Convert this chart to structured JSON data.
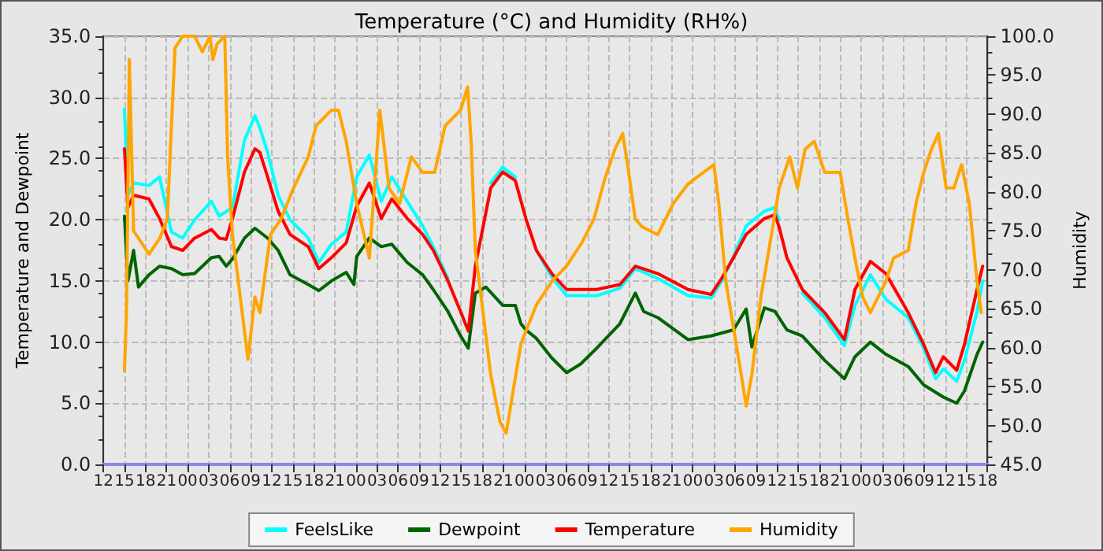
{
  "chart_data": {
    "type": "line",
    "title": "Temperature (°C) and Humidity (RH%)",
    "ylabel": "Temperature and Dewpoint",
    "y2label": "Humidity",
    "xlim": [
      12,
      138
    ],
    "xticks": [
      {
        "value": 12,
        "label": "12"
      },
      {
        "value": 15,
        "label": "15"
      },
      {
        "value": 18,
        "label": "18"
      },
      {
        "value": 21,
        "label": "21"
      },
      {
        "value": 24,
        "label": "00"
      },
      {
        "value": 27,
        "label": "03"
      },
      {
        "value": 30,
        "label": "06"
      },
      {
        "value": 33,
        "label": "09"
      },
      {
        "value": 36,
        "label": "12"
      },
      {
        "value": 39,
        "label": "15"
      },
      {
        "value": 42,
        "label": "18"
      },
      {
        "value": 45,
        "label": "21"
      },
      {
        "value": 48,
        "label": "00"
      },
      {
        "value": 51,
        "label": "03"
      },
      {
        "value": 54,
        "label": "06"
      },
      {
        "value": 57,
        "label": "09"
      },
      {
        "value": 60,
        "label": "12"
      },
      {
        "value": 63,
        "label": "15"
      },
      {
        "value": 66,
        "label": "18"
      },
      {
        "value": 69,
        "label": "21"
      },
      {
        "value": 72,
        "label": "00"
      },
      {
        "value": 75,
        "label": "03"
      },
      {
        "value": 78,
        "label": "06"
      },
      {
        "value": 81,
        "label": "09"
      },
      {
        "value": 84,
        "label": "12"
      },
      {
        "value": 87,
        "label": "15"
      },
      {
        "value": 90,
        "label": "18"
      },
      {
        "value": 93,
        "label": "21"
      },
      {
        "value": 96,
        "label": "00"
      },
      {
        "value": 99,
        "label": "03"
      },
      {
        "value": 102,
        "label": "06"
      },
      {
        "value": 105,
        "label": "09"
      },
      {
        "value": 108,
        "label": "12"
      },
      {
        "value": 111,
        "label": "15"
      },
      {
        "value": 114,
        "label": "18"
      },
      {
        "value": 117,
        "label": "21"
      },
      {
        "value": 120,
        "label": "00"
      },
      {
        "value": 123,
        "label": "03"
      },
      {
        "value": 126,
        "label": "06"
      },
      {
        "value": 129,
        "label": "09"
      },
      {
        "value": 132,
        "label": "12"
      },
      {
        "value": 135,
        "label": "15"
      },
      {
        "value": 138,
        "label": "18"
      }
    ],
    "ylim": [
      0,
      35
    ],
    "yticks": [
      {
        "value": 0,
        "label": "0.0"
      },
      {
        "value": 5,
        "label": "5.0"
      },
      {
        "value": 10,
        "label": "10.0"
      },
      {
        "value": 15,
        "label": "15.0"
      },
      {
        "value": 20,
        "label": "20.0"
      },
      {
        "value": 25,
        "label": "25.0"
      },
      {
        "value": 30,
        "label": "30.0"
      },
      {
        "value": 35,
        "label": "35.0"
      }
    ],
    "y2lim": [
      45,
      100
    ],
    "y2ticks": [
      {
        "value": 45,
        "label": "45.0"
      },
      {
        "value": 50,
        "label": "50.0"
      },
      {
        "value": 55,
        "label": "55.0"
      },
      {
        "value": 60,
        "label": "60.0"
      },
      {
        "value": 65,
        "label": "65.0"
      },
      {
        "value": 70,
        "label": "70.0"
      },
      {
        "value": 75,
        "label": "75.0"
      },
      {
        "value": 80,
        "label": "80.0"
      },
      {
        "value": 85,
        "label": "85.0"
      },
      {
        "value": 90,
        "label": "90.0"
      },
      {
        "value": 95,
        "label": "95.0"
      },
      {
        "value": 100,
        "label": "100.0"
      }
    ],
    "grid": true,
    "legend": "bottom",
    "marker": "none",
    "line_style": "solid",
    "series": [
      {
        "name": "FeelsLike",
        "color": "#00ffff",
        "x": [
          15.0,
          15.5,
          16.3,
          18.5,
          20.0,
          21.7,
          23.3,
          25.0,
          27.4,
          28.5,
          30.4,
          32.1,
          33.6,
          34.3,
          35.4,
          36.9,
          38.6,
          41.2,
          42.7,
          44.5,
          46.6,
          48.1,
          49.9,
          51.6,
          53.1,
          55.3,
          57.5,
          59.0,
          61.1,
          62.9,
          64.0,
          65.0,
          67.2,
          68.9,
          70.7,
          72.2,
          73.7,
          75.9,
          78.0,
          82.3,
          85.6,
          87.8,
          91.0,
          95.3,
          98.6,
          100.1,
          101.8,
          103.6,
          106.2,
          107.7,
          108.3,
          109.4,
          111.6,
          114.8,
          117.6,
          119.1,
          121.3,
          123.5,
          126.7,
          128.9,
          130.6,
          131.7,
          133.6,
          134.7,
          136.5,
          137.3
        ],
        "values": [
          29.0,
          22.0,
          23.0,
          22.8,
          23.5,
          19.0,
          18.5,
          20.0,
          21.5,
          20.3,
          21.0,
          26.5,
          28.5,
          27.5,
          25.5,
          22.0,
          20.0,
          18.5,
          16.5,
          18.0,
          19.0,
          23.5,
          25.3,
          21.5,
          23.5,
          21.5,
          19.5,
          17.8,
          15.2,
          null,
          null,
          null,
          23.0,
          24.3,
          23.5,
          null,
          17.5,
          15.3,
          13.8,
          13.8,
          14.4,
          16.0,
          15.2,
          13.8,
          13.6,
          15.0,
          17.0,
          19.5,
          20.7,
          21.0,
          20.0,
          null,
          14.0,
          12.0,
          9.7,
          13.0,
          15.5,
          13.5,
          12.0,
          9.5,
          7.0,
          7.8,
          6.8,
          8.5,
          12.5,
          15.0
        ]
      },
      {
        "name": "Dewpoint",
        "color": "#006400",
        "x": [
          15.0,
          15.5,
          16.3,
          17.0,
          18.5,
          20.0,
          21.7,
          23.3,
          25.0,
          27.4,
          28.5,
          29.5,
          30.4,
          32.1,
          33.6,
          35.4,
          36.9,
          38.6,
          41.2,
          42.7,
          44.5,
          46.6,
          47.7,
          48.1,
          49.9,
          51.6,
          53.1,
          55.3,
          57.5,
          59.0,
          61.1,
          62.9,
          64.0,
          65.0,
          66.5,
          68.9,
          70.7,
          71.5,
          72.2,
          73.7,
          75.9,
          78.0,
          80.0,
          82.3,
          85.6,
          87.8,
          89.0,
          91.0,
          95.3,
          98.6,
          101.8,
          103.6,
          104.4,
          106.2,
          107.7,
          109.4,
          111.6,
          114.8,
          117.6,
          119.1,
          121.3,
          123.5,
          126.7,
          128.9,
          131.7,
          133.6,
          134.7,
          136.5,
          137.3
        ],
        "values": [
          20.3,
          15.0,
          17.5,
          14.5,
          15.5,
          16.2,
          16.0,
          15.5,
          15.6,
          16.9,
          17.0,
          16.2,
          16.8,
          18.5,
          19.3,
          18.5,
          17.5,
          15.5,
          14.7,
          14.2,
          15.0,
          15.7,
          14.7,
          17.0,
          18.5,
          17.8,
          18.0,
          16.5,
          15.5,
          14.3,
          12.5,
          10.5,
          9.5,
          14.0,
          14.5,
          13.0,
          13.0,
          11.5,
          11.0,
          10.3,
          8.7,
          7.5,
          8.2,
          9.5,
          11.5,
          14.0,
          12.5,
          12.0,
          10.2,
          10.5,
          11.0,
          12.7,
          9.6,
          12.8,
          12.5,
          11.0,
          10.5,
          8.5,
          7.0,
          8.8,
          10.0,
          9.0,
          8.0,
          6.5,
          5.5,
          5.0,
          6.0,
          9.0,
          10.0
        ]
      },
      {
        "name": "Temperature",
        "color": "#ff0000",
        "x": [
          15.0,
          15.5,
          16.3,
          18.5,
          20.0,
          21.7,
          23.3,
          25.0,
          27.4,
          28.5,
          29.5,
          30.4,
          32.1,
          33.6,
          34.3,
          35.4,
          36.9,
          38.6,
          41.2,
          42.7,
          44.5,
          46.6,
          48.1,
          49.9,
          51.6,
          53.1,
          55.3,
          57.5,
          59.0,
          61.1,
          62.9,
          64.0,
          65.0,
          67.2,
          68.9,
          70.7,
          72.2,
          73.7,
          75.9,
          78.0,
          82.3,
          85.6,
          87.8,
          91.0,
          95.3,
          98.6,
          100.1,
          101.8,
          103.6,
          106.2,
          107.7,
          108.3,
          109.4,
          111.6,
          114.8,
          117.6,
          119.1,
          121.3,
          123.5,
          126.7,
          128.9,
          130.6,
          131.7,
          133.6,
          134.7,
          136.5,
          137.3
        ],
        "values": [
          25.8,
          21.0,
          22.0,
          21.7,
          20.1,
          17.8,
          17.5,
          18.5,
          19.2,
          18.5,
          18.4,
          20.1,
          23.9,
          25.8,
          25.5,
          23.5,
          20.7,
          18.8,
          17.8,
          16.0,
          16.9,
          18.1,
          21.1,
          23.0,
          20.1,
          21.7,
          20.1,
          18.8,
          17.5,
          15.0,
          12.5,
          10.9,
          16.2,
          22.6,
          23.9,
          23.2,
          20.1,
          17.5,
          15.6,
          14.3,
          14.3,
          14.7,
          16.2,
          15.6,
          14.3,
          13.9,
          15.2,
          16.9,
          18.8,
          20.1,
          20.4,
          19.4,
          16.9,
          14.3,
          12.4,
          10.2,
          14.3,
          16.6,
          15.6,
          12.4,
          9.8,
          7.5,
          8.8,
          7.7,
          9.8,
          14.3,
          16.2
        ]
      },
      {
        "name": "Humidity",
        "color": "#ffa500",
        "axis": "y2",
        "x": [
          15.0,
          15.3,
          15.7,
          16.3,
          18.5,
          20.0,
          21.1,
          22.2,
          23.3,
          25.0,
          26.1,
          27.2,
          27.6,
          28.2,
          29.3,
          29.7,
          30.4,
          31.5,
          32.6,
          33.6,
          34.3,
          35.8,
          37.3,
          39.1,
          41.2,
          42.3,
          44.5,
          45.5,
          46.6,
          48.1,
          49.9,
          51.4,
          52.7,
          54.2,
          55.9,
          57.5,
          59.2,
          60.7,
          62.9,
          63.9,
          64.4,
          65.0,
          66.1,
          67.2,
          68.5,
          69.4,
          70.4,
          71.5,
          73.7,
          75.9,
          78.0,
          80.2,
          81.9,
          83.4,
          84.9,
          86.0,
          86.7,
          87.8,
          88.8,
          91.0,
          93.2,
          95.3,
          97.5,
          99.0,
          99.7,
          100.7,
          102.9,
          103.6,
          104.4,
          105.7,
          107.2,
          108.3,
          109.8,
          110.9,
          112.0,
          113.3,
          114.8,
          117.0,
          118.1,
          119.1,
          120.2,
          121.3,
          123.5,
          124.6,
          126.7,
          127.8,
          128.9,
          130.0,
          131.0,
          132.1,
          133.2,
          134.3,
          135.4,
          136.5,
          137.1
        ],
        "values": [
          57,
          65,
          97,
          75,
          72,
          74,
          76.5,
          98.5,
          100,
          100,
          98,
          100,
          97,
          99,
          100,
          84.5,
          74.5,
          66.5,
          58.5,
          66.5,
          64.5,
          74.5,
          76.5,
          80.5,
          84.5,
          88.5,
          90.5,
          90.5,
          86.5,
          78.5,
          71.5,
          90.5,
          80.5,
          78.5,
          84.5,
          82.5,
          82.5,
          88.5,
          90.5,
          93.5,
          86.5,
          72.5,
          64.5,
          56.5,
          50.5,
          49,
          54.5,
          60.5,
          65.5,
          68.5,
          70.5,
          73.5,
          76.5,
          81.5,
          85.5,
          87.5,
          83.5,
          76.5,
          75.5,
          74.5,
          78.5,
          81,
          82.5,
          83.5,
          78.5,
          68.5,
          56.5,
          52.5,
          56.5,
          66.5,
          74.5,
          80.5,
          84.5,
          80.5,
          85.5,
          86.5,
          82.5,
          82.5,
          76.5,
          71.5,
          66.5,
          64.5,
          68.5,
          71.5,
          72.5,
          78.5,
          82.5,
          85.5,
          87.5,
          80.5,
          80.5,
          83.5,
          78.5,
          68.5,
          64.5
        ]
      }
    ]
  }
}
